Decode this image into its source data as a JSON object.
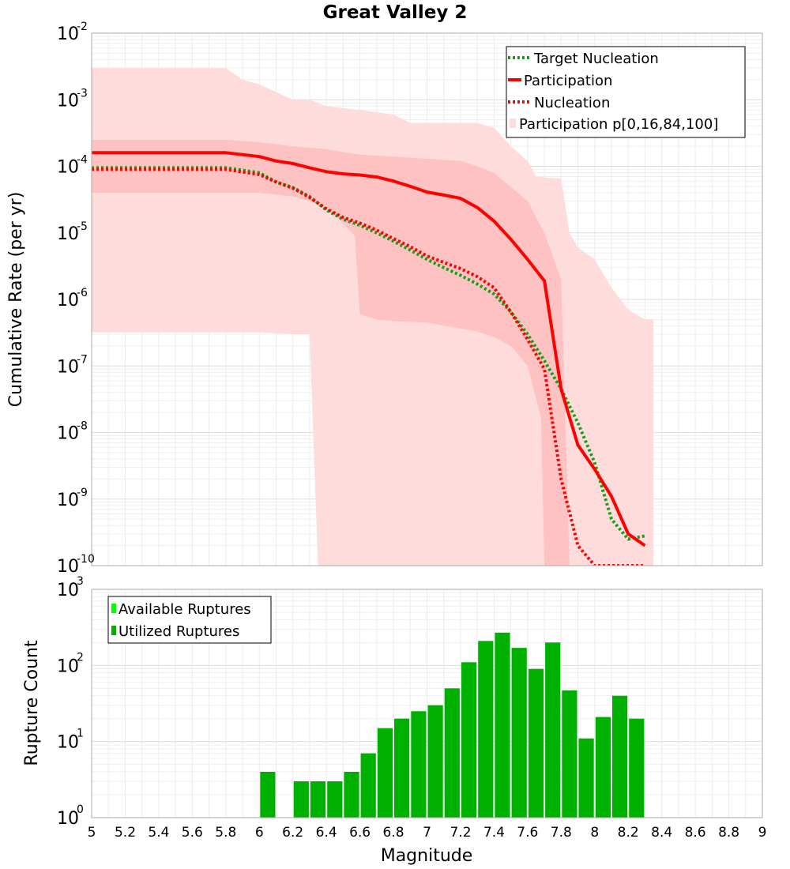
{
  "chart_data": [
    {
      "type": "line",
      "title": "Great Valley 2",
      "xlabel": "Magnitude",
      "ylabel": "Cumulative Rate (per yr)",
      "xlim": [
        5,
        9
      ],
      "ylim": [
        1e-10,
        0.01
      ],
      "yscale": "log",
      "y_ticks": [
        {
          "base": "10",
          "exp": "-2"
        },
        {
          "base": "10",
          "exp": "-3"
        },
        {
          "base": "10",
          "exp": "-4"
        },
        {
          "base": "10",
          "exp": "-5"
        },
        {
          "base": "10",
          "exp": "-6"
        },
        {
          "base": "10",
          "exp": "-7"
        },
        {
          "base": "10",
          "exp": "-8"
        },
        {
          "base": "10",
          "exp": "-9"
        },
        {
          "base": "10",
          "exp": "-10"
        }
      ],
      "legend": [
        "Target Nucleation",
        "Participation",
        "Nucleation",
        "Participation p[0,16,84,100]"
      ],
      "legend_position": "top-right",
      "colors": {
        "target": "#14a014",
        "participation": "#ff0000",
        "nucleation": "#ff0000",
        "band_outer": "#ffdcdc",
        "band_inner": "#ffc2c2"
      },
      "x": [
        5.0,
        5.2,
        5.4,
        5.6,
        5.8,
        6.0,
        6.1,
        6.2,
        6.3,
        6.4,
        6.5,
        6.6,
        6.7,
        6.8,
        6.9,
        7.0,
        7.1,
        7.2,
        7.3,
        7.4,
        7.5,
        7.6,
        7.7,
        7.8,
        7.9,
        8.0,
        8.1,
        8.2,
        8.3
      ],
      "series": [
        {
          "name": "Target Nucleation",
          "style": "dotted",
          "values": [
            9.5e-05,
            9.5e-05,
            9.5e-05,
            9.5e-05,
            9.5e-05,
            8e-05,
            5.8e-05,
            4.8e-05,
            3.5e-05,
            2.2e-05,
            1.6e-05,
            1.3e-05,
            1e-05,
            7.5e-06,
            5.5e-06,
            4e-06,
            3e-06,
            2.3e-06,
            1.7e-06,
            1.2e-06,
            6.5e-07,
            3e-07,
            1.2e-07,
            4.5e-08,
            1.4e-08,
            3.5e-09,
            5e-10,
            2.5e-10,
            2.8e-10
          ]
        },
        {
          "name": "Participation",
          "style": "solid",
          "values": [
            0.00016,
            0.00016,
            0.00016,
            0.00016,
            0.00016,
            0.00014,
            0.00012,
            0.00011,
            9.5e-05,
            8.3e-05,
            7.7e-05,
            7.4e-05,
            6.9e-05,
            6e-05,
            5e-05,
            4.1e-05,
            3.7e-05,
            3.3e-05,
            2.4e-05,
            1.5e-05,
            8e-06,
            4e-06,
            1.9e-06,
            4.5e-08,
            6.5e-09,
            2.8e-09,
            1.1e-09,
            3e-10,
            2e-10
          ]
        },
        {
          "name": "Nucleation",
          "style": "dotted",
          "values": [
            9e-05,
            9e-05,
            9e-05,
            9e-05,
            9e-05,
            7.5e-05,
            5.8e-05,
            4.7e-05,
            3.4e-05,
            2.3e-05,
            1.7e-05,
            1.4e-05,
            1.1e-05,
            8.2e-06,
            6.2e-06,
            4.5e-06,
            3.6e-06,
            2.9e-06,
            2.2e-06,
            1.5e-06,
            6.5e-07,
            2.5e-07,
            9e-08,
            2e-09,
            2e-10,
            1e-10,
            1e-10,
            1e-10,
            1e-10
          ]
        }
      ]
    },
    {
      "type": "bar",
      "xlabel": "Magnitude",
      "ylabel": "Rupture Count",
      "xlim": [
        5,
        9
      ],
      "ylim": [
        1,
        1000
      ],
      "yscale": "log",
      "y_ticks": [
        {
          "base": "10",
          "exp": "3"
        },
        {
          "base": "10",
          "exp": "2"
        },
        {
          "base": "10",
          "exp": "1"
        },
        {
          "base": "10",
          "exp": "0"
        }
      ],
      "x_ticks": [
        "5",
        "5.2",
        "5.4",
        "5.6",
        "5.8",
        "6",
        "6.2",
        "6.4",
        "6.6",
        "6.8",
        "7",
        "7.2",
        "7.4",
        "7.6",
        "7.8",
        "8",
        "8.2",
        "8.4",
        "8.6",
        "8.8",
        "9"
      ],
      "legend": [
        "Available Ruptures",
        "Utilized Ruptures"
      ],
      "legend_position": "top-left",
      "colors": {
        "available": "#00ff00",
        "utilized": "#00b000"
      },
      "bin_width": 0.1,
      "categories": [
        6.05,
        6.25,
        6.35,
        6.45,
        6.55,
        6.65,
        6.75,
        6.85,
        6.95,
        7.05,
        7.15,
        7.25,
        7.35,
        7.45,
        7.55,
        7.65,
        7.75,
        7.85,
        7.95,
        8.05,
        8.15,
        8.25
      ],
      "values": [
        4,
        3,
        3,
        3,
        4,
        7,
        15,
        20,
        25,
        30,
        50,
        110,
        210,
        270,
        170,
        90,
        200,
        47,
        11,
        21,
        40,
        20
      ]
    }
  ]
}
